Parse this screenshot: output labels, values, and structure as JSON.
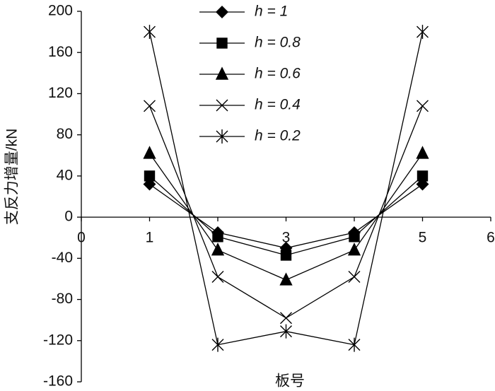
{
  "chart_data": {
    "type": "line",
    "x_label": "板号",
    "y_label": "支反力增量/kN",
    "x": [
      1,
      2,
      3,
      4,
      5
    ],
    "series": [
      {
        "name": "h = 1",
        "color": "#000000",
        "marker": "diamond",
        "values": [
          32,
          -15,
          -30,
          -15,
          32
        ]
      },
      {
        "name": "h = 0.8",
        "color": "#000000",
        "marker": "square",
        "values": [
          40,
          -19,
          -37,
          -19,
          40
        ]
      },
      {
        "name": "h = 0.6",
        "color": "#000000",
        "marker": "triangle",
        "values": [
          62,
          -32,
          -61,
          -32,
          62
        ]
      },
      {
        "name": "h = 0.4",
        "color": "#000000",
        "marker": "x",
        "values": [
          108,
          -58,
          -98,
          -58,
          108
        ]
      },
      {
        "name": "h = 0.2",
        "color": "#000000",
        "marker": "star",
        "values": [
          180,
          -124,
          -111,
          -124,
          180
        ]
      }
    ],
    "xlim": [
      0,
      6
    ],
    "xticks": [
      0,
      1,
      2,
      3,
      4,
      5,
      6
    ],
    "ylim": [
      -160,
      200
    ],
    "yticks": [
      -160,
      -120,
      -80,
      -40,
      0,
      40,
      80,
      120,
      160,
      200
    ],
    "legend": "top"
  }
}
